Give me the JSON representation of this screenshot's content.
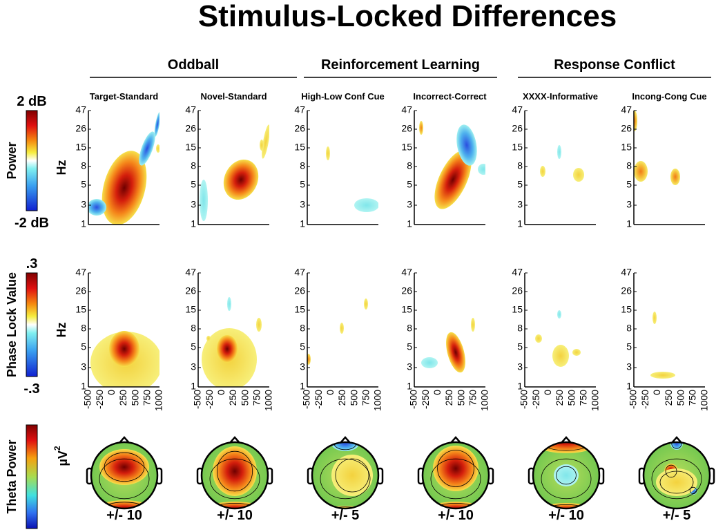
{
  "title": "Stimulus-Locked Differences",
  "groups": [
    "Oddball",
    "Reinforcement Learning",
    "Response Conflict"
  ],
  "columns": [
    "Target-Standard",
    "Novel-Standard",
    "High-Low Conf Cue",
    "Incorrect-Correct",
    "XXXX-Informative",
    "Incong-Cong Cue"
  ],
  "rows": [
    {
      "label": "Power",
      "colorbar_max": "2 dB",
      "colorbar_min": "-2 dB",
      "axis_label": "Hz"
    },
    {
      "label": "Phase Lock Value",
      "colorbar_max": ".3",
      "colorbar_min": "-.3",
      "axis_label": "Hz"
    },
    {
      "label": "Theta Power",
      "axis_label": "µV",
      "axis_label_exponent": "2"
    }
  ],
  "y_ticks": [
    "47",
    "26",
    "15",
    "8",
    "5",
    "3",
    "1"
  ],
  "x_ticks": [
    "-500",
    "-250",
    "0",
    "250",
    "500",
    "750",
    "1000"
  ],
  "topo_scales": [
    "+/- 10",
    "+/- 10",
    "+/- 5",
    "+/- 10",
    "+/- 10",
    "+/- 5"
  ]
}
